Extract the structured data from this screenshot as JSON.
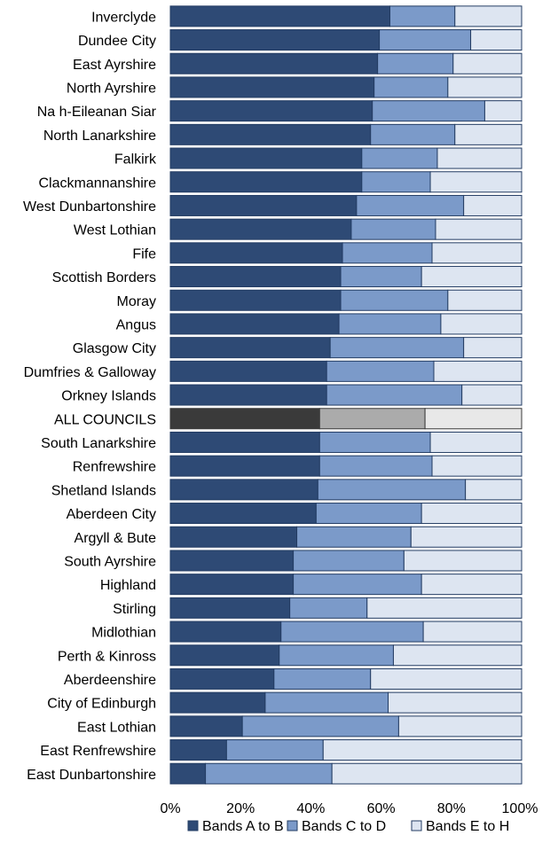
{
  "chart_data": {
    "type": "bar",
    "orientation": "horizontal",
    "stacked": true,
    "title": "",
    "xlabel": "",
    "ylabel": "",
    "xlim": [
      0,
      100
    ],
    "x_ticks": [
      "0%",
      "20%",
      "40%",
      "60%",
      "80%",
      "100%"
    ],
    "grid": false,
    "legend_position": "bottom",
    "highlight_category": "ALL COUNCILS",
    "categories": [
      "Inverclyde",
      "Dundee City",
      "East Ayrshire",
      "North Ayrshire",
      "Na h-Eileanan Siar",
      "North Lanarkshire",
      "Falkirk",
      "Clackmannanshire",
      "West Dunbartonshire",
      "West Lothian",
      "Fife",
      "Scottish Borders",
      "Moray",
      "Angus",
      "Glasgow City",
      "Dumfries & Galloway",
      "Orkney Islands",
      "ALL COUNCILS",
      "South Lanarkshire",
      "Renfrewshire",
      "Shetland Islands",
      "Aberdeen City",
      "Argyll & Bute",
      "South Ayrshire",
      "Highland",
      "Stirling",
      "Midlothian",
      "Perth & Kinross",
      "Aberdeenshire",
      "City of Edinburgh",
      "East Lothian",
      "East Renfrewshire",
      "East Dunbartonshire"
    ],
    "series": [
      {
        "name": "Bands A to B",
        "color": "#2e4a75",
        "highlight_color": "#3a3a3a",
        "values": [
          62.5,
          59.5,
          59,
          58,
          57.5,
          57,
          54.5,
          54.5,
          53,
          51.5,
          49,
          48.5,
          48.5,
          48,
          45.5,
          44.5,
          44.5,
          42.5,
          42.5,
          42.5,
          42,
          41.5,
          36,
          35,
          35,
          34,
          31.5,
          31,
          29.5,
          27,
          20.5,
          16,
          10
        ]
      },
      {
        "name": "Bands C to D",
        "color": "#7b9ac9",
        "highlight_color": "#ababab",
        "values": [
          18.5,
          26,
          21.5,
          21,
          32,
          24,
          21.5,
          19.5,
          30.5,
          24,
          25.5,
          23,
          30.5,
          29,
          38,
          30.5,
          38.5,
          30,
          31.5,
          32,
          42,
          30,
          32.5,
          31.5,
          36.5,
          22,
          40.5,
          32.5,
          27.5,
          35,
          44.5,
          27.5,
          36
        ]
      },
      {
        "name": "Bands E to H",
        "color": "#dde5f1",
        "highlight_color": "#e8e8e8",
        "values": [
          19,
          14.5,
          19.5,
          21,
          10.5,
          19,
          24,
          26,
          16.5,
          24.5,
          25.5,
          28.5,
          21,
          23,
          16.5,
          25,
          17,
          27.5,
          26,
          25.5,
          16,
          28.5,
          31.5,
          33.5,
          28.5,
          44,
          28,
          36.5,
          43,
          38,
          35,
          56.5,
          54
        ]
      }
    ]
  }
}
